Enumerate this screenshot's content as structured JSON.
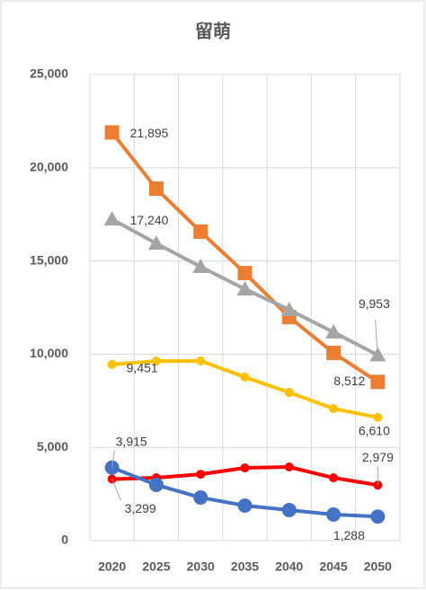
{
  "chart_data": {
    "type": "line",
    "title": "留萌",
    "categories": [
      "2020",
      "2025",
      "2030",
      "2035",
      "2040",
      "2045",
      "2050"
    ],
    "ylim": [
      0,
      25000
    ],
    "yticks": [
      0,
      {
        "value": 5000,
        "label": "5,000"
      },
      {
        "value": 10000,
        "label": "10,000"
      },
      {
        "value": 15000,
        "label": "15,000"
      },
      {
        "value": 20000,
        "label": "20,000"
      },
      {
        "value": 25000,
        "label": "25,000"
      }
    ],
    "grid": true,
    "series": [
      {
        "color": "#ed7d31",
        "marker": "square",
        "values": [
          21895,
          18880,
          16570,
          14350,
          11990,
          10070,
          8512
        ],
        "value_labels": [
          "21,895",
          null,
          null,
          null,
          null,
          null,
          "8,512"
        ]
      },
      {
        "color": "#a5a5a5",
        "marker": "triangle",
        "values": [
          17240,
          15940,
          14690,
          13490,
          12380,
          11180,
          9953
        ],
        "value_labels": [
          "17,240",
          null,
          null,
          null,
          null,
          null,
          "9,953"
        ]
      },
      {
        "color": "#ffc000",
        "marker": "small-circle",
        "values": [
          9451,
          9630,
          9640,
          8770,
          7950,
          7080,
          6610
        ],
        "value_labels": [
          "9,451",
          null,
          null,
          null,
          null,
          null,
          "6,610"
        ]
      },
      {
        "color": "#ff0000",
        "marker": "small-circle",
        "values": [
          3299,
          3370,
          3560,
          3900,
          3950,
          3370,
          2979
        ],
        "value_labels": [
          "3,299",
          null,
          null,
          null,
          null,
          null,
          "2,979"
        ]
      },
      {
        "color": "#4472c4",
        "marker": "circle",
        "values": [
          3915,
          2990,
          2310,
          1880,
          1640,
          1400,
          1288
        ],
        "value_labels": [
          "3,915",
          null,
          null,
          null,
          null,
          null,
          "1,288"
        ]
      }
    ]
  }
}
